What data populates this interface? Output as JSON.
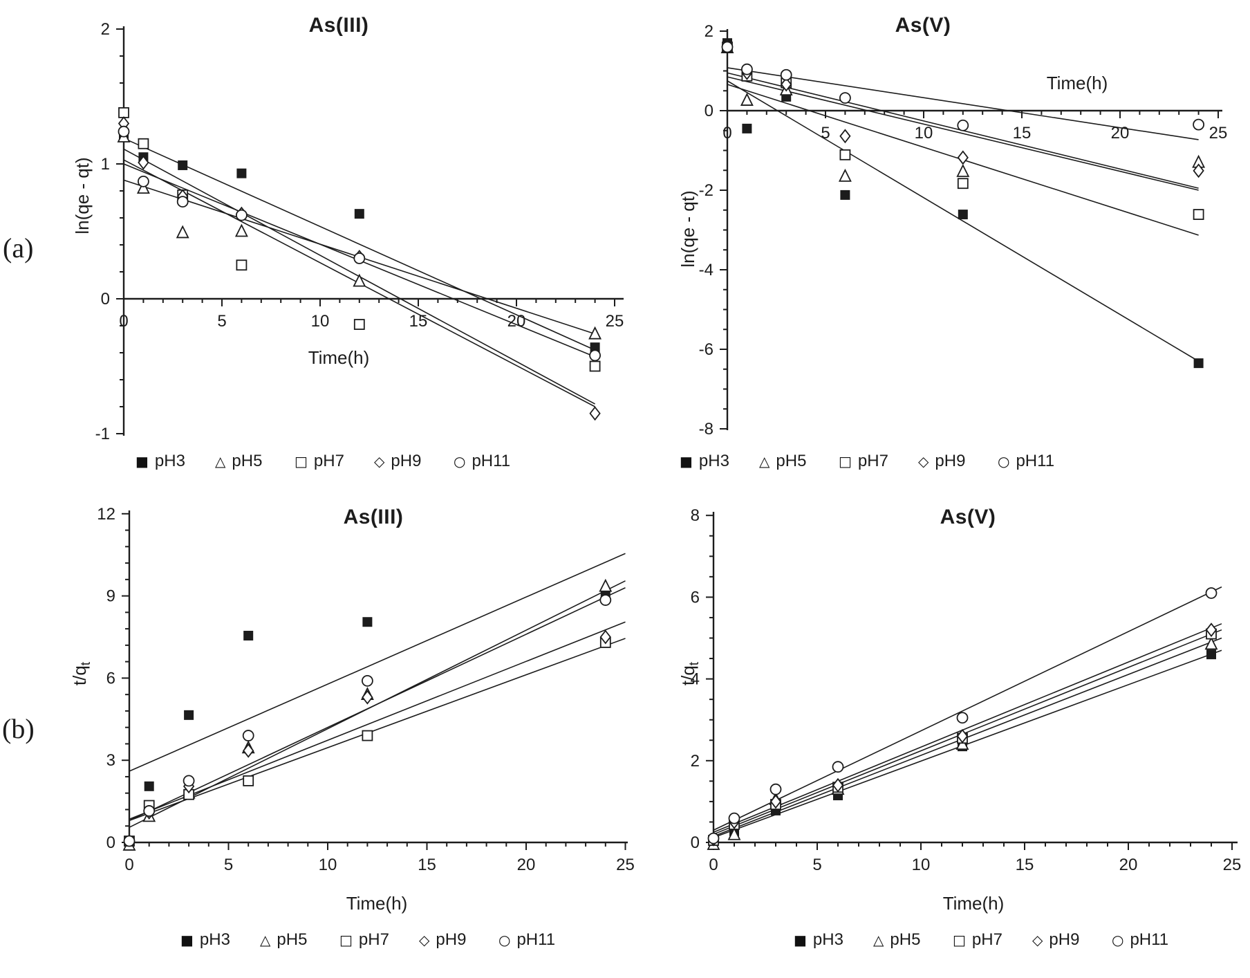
{
  "panels": {
    "a": "(a)",
    "b": "(b)"
  },
  "legend": {
    "marker_glyphs": {
      "square-filled": "■",
      "triangle-open": "△",
      "square-open": "□",
      "diamond-open": "◇",
      "circle-open": "○"
    },
    "items": [
      {
        "marker": "square-filled",
        "label": "pH3"
      },
      {
        "marker": "triangle-open",
        "label": "pH5"
      },
      {
        "marker": "square-open",
        "label": "pH7"
      },
      {
        "marker": "diamond-open",
        "label": "pH9"
      },
      {
        "marker": "circle-open",
        "label": "pH11"
      }
    ]
  },
  "chart_data": [
    {
      "type": "scatter",
      "title": "As(III)",
      "x_label": "Time(h)",
      "y_label_main": "ln(qe - qt)",
      "y_label_sub": "",
      "x_axis": {
        "min": 0,
        "max": 25,
        "ticks": [
          0,
          5,
          10,
          15,
          20,
          25
        ],
        "minor_step": 1
      },
      "y_axis": {
        "min": -1,
        "max": 2,
        "ticks": [
          2,
          1,
          0,
          -1
        ],
        "minor_step": 0.2
      },
      "legend_position": "bottom",
      "grid": false,
      "series": [
        {
          "name": "pH3",
          "marker": "square-filled",
          "points": [
            [
              0,
              1.22
            ],
            [
              1,
              1.05
            ],
            [
              3,
              0.99
            ],
            [
              6,
              0.93
            ],
            [
              12,
              0.63
            ],
            [
              24,
              -0.36
            ]
          ],
          "fit_line": [
            [
              0,
              1.19
            ],
            [
              24,
              -0.38
            ]
          ]
        },
        {
          "name": "pH5",
          "marker": "triangle-open",
          "points": [
            [
              0,
              1.2
            ],
            [
              1,
              0.82
            ],
            [
              3,
              0.49
            ],
            [
              6,
              0.5
            ],
            [
              12,
              0.13
            ],
            [
              24,
              -0.26
            ]
          ],
          "fit_line": [
            [
              0,
              0.88
            ],
            [
              24,
              -0.26
            ]
          ]
        },
        {
          "name": "pH7",
          "marker": "square-open",
          "points": [
            [
              0,
              1.38
            ],
            [
              1,
              1.15
            ],
            [
              3,
              0.77
            ],
            [
              6,
              0.25
            ],
            [
              12,
              -0.19
            ],
            [
              24,
              -0.5
            ]
          ],
          "fit_line": [
            [
              0,
              1.11
            ],
            [
              24,
              -0.78
            ]
          ]
        },
        {
          "name": "pH9",
          "marker": "diamond-open",
          "points": [
            [
              0,
              1.3
            ],
            [
              1,
              1.01
            ],
            [
              3,
              0.76
            ],
            [
              6,
              0.63
            ],
            [
              12,
              0.31
            ],
            [
              24,
              -0.85
            ]
          ],
          "fit_line": [
            [
              0,
              1.03
            ],
            [
              24,
              -0.8
            ]
          ]
        },
        {
          "name": "pH11",
          "marker": "circle-open",
          "points": [
            [
              0,
              1.24
            ],
            [
              1,
              0.87
            ],
            [
              3,
              0.72
            ],
            [
              6,
              0.62
            ],
            [
              12,
              0.3
            ],
            [
              24,
              -0.42
            ]
          ],
          "fit_line": [
            [
              0,
              1.0
            ],
            [
              24,
              -0.43
            ]
          ]
        }
      ]
    },
    {
      "type": "scatter",
      "title": "As(V)",
      "x_label": "Time(h)",
      "y_label_main": "ln(qe - qt)",
      "y_label_sub": "",
      "x_axis": {
        "min": 0,
        "max": 25,
        "ticks": [
          0,
          5,
          10,
          15,
          20,
          25
        ],
        "minor_step": 1
      },
      "y_axis": {
        "min": -8,
        "max": 2,
        "ticks": [
          2,
          0,
          -2,
          -4,
          -6,
          -8
        ],
        "minor_step": 0.5
      },
      "legend_position": "bottom",
      "grid": false,
      "series": [
        {
          "name": "pH3",
          "marker": "square-filled",
          "points": [
            [
              0,
              1.7
            ],
            [
              1,
              -0.45
            ],
            [
              3,
              0.35
            ],
            [
              6,
              -2.12
            ],
            [
              12,
              -2.61
            ],
            [
              24,
              -6.35
            ]
          ],
          "fit_line": [
            [
              0,
              0.75
            ],
            [
              24,
              -6.3
            ]
          ]
        },
        {
          "name": "pH5",
          "marker": "triangle-open",
          "points": [
            [
              0,
              1.58
            ],
            [
              1,
              0.26
            ],
            [
              3,
              0.52
            ],
            [
              6,
              -1.65
            ],
            [
              12,
              -1.53
            ],
            [
              24,
              -1.3
            ]
          ],
          "fit_line": [
            [
              0,
              0.85
            ],
            [
              24,
              -2.0
            ]
          ]
        },
        {
          "name": "pH7",
          "marker": "square-open",
          "points": [
            [
              0,
              1.6
            ],
            [
              1,
              0.87
            ],
            [
              3,
              0.7
            ],
            [
              6,
              -1.11
            ],
            [
              12,
              -1.83
            ],
            [
              24,
              -2.61
            ]
          ],
          "fit_line": [
            [
              0,
              0.66
            ],
            [
              24,
              -3.13
            ]
          ]
        },
        {
          "name": "pH9",
          "marker": "diamond-open",
          "points": [
            [
              0,
              1.62
            ],
            [
              1,
              0.95
            ],
            [
              3,
              0.66
            ],
            [
              6,
              -0.64
            ],
            [
              12,
              -1.18
            ],
            [
              24,
              -1.51
            ]
          ],
          "fit_line": [
            [
              0,
              0.95
            ],
            [
              24,
              -1.95
            ]
          ]
        },
        {
          "name": "pH11",
          "marker": "circle-open",
          "points": [
            [
              0,
              1.6
            ],
            [
              1,
              1.04
            ],
            [
              3,
              0.9
            ],
            [
              6,
              0.32
            ],
            [
              12,
              -0.37
            ],
            [
              24,
              -0.35
            ]
          ],
          "fit_line": [
            [
              0,
              1.08
            ],
            [
              24,
              -0.73
            ]
          ]
        }
      ]
    },
    {
      "type": "scatter",
      "title": "As(III)",
      "x_label": "Time(h)",
      "y_label_main": "t/q",
      "y_label_sub": "t",
      "x_axis": {
        "min": 0,
        "max": 25,
        "ticks": [
          0,
          5,
          10,
          15,
          20,
          25
        ],
        "minor_step": 1
      },
      "y_axis": {
        "min": 0,
        "max": 12,
        "ticks": [
          0,
          3,
          6,
          9,
          12
        ],
        "minor_step": 0.6
      },
      "legend_position": "bottom",
      "grid": false,
      "series": [
        {
          "name": "pH3",
          "marker": "square-filled",
          "points": [
            [
              0,
              0.05
            ],
            [
              1,
              2.05
            ],
            [
              3,
              4.65
            ],
            [
              6,
              7.55
            ],
            [
              12,
              8.05
            ],
            [
              24,
              9.0
            ]
          ],
          "fit_line": [
            [
              0,
              2.6
            ],
            [
              25,
              10.55
            ]
          ]
        },
        {
          "name": "pH5",
          "marker": "triangle-open",
          "points": [
            [
              0,
              -0.1
            ],
            [
              1,
              0.95
            ],
            [
              3,
              1.8
            ],
            [
              6,
              3.45
            ],
            [
              12,
              5.4
            ],
            [
              24,
              9.35
            ]
          ],
          "fit_line": [
            [
              0,
              0.55
            ],
            [
              25,
              9.55
            ]
          ]
        },
        {
          "name": "pH7",
          "marker": "square-open",
          "points": [
            [
              0,
              0.05
            ],
            [
              1,
              1.35
            ],
            [
              3,
              1.75
            ],
            [
              6,
              2.25
            ],
            [
              12,
              3.9
            ],
            [
              24,
              7.3
            ]
          ],
          "fit_line": [
            [
              0,
              0.8
            ],
            [
              25,
              7.45
            ]
          ]
        },
        {
          "name": "pH9",
          "marker": "diamond-open",
          "points": [
            [
              1,
              1.1
            ],
            [
              3,
              2.05
            ],
            [
              6,
              3.35
            ],
            [
              12,
              5.3
            ],
            [
              24,
              7.5
            ]
          ],
          "fit_line": [
            [
              0,
              0.85
            ],
            [
              25,
              8.05
            ]
          ]
        },
        {
          "name": "pH11",
          "marker": "circle-open",
          "points": [
            [
              0,
              0.05
            ],
            [
              1,
              1.15
            ],
            [
              3,
              2.25
            ],
            [
              6,
              3.9
            ],
            [
              12,
              5.9
            ],
            [
              24,
              8.85
            ]
          ],
          "fit_line": [
            [
              0,
              0.8
            ],
            [
              25,
              9.3
            ]
          ]
        }
      ]
    },
    {
      "type": "scatter",
      "title": "As(V)",
      "x_label": "Time(h)",
      "y_label_main": "t/q",
      "y_label_sub": "t",
      "x_axis": {
        "min": 0,
        "max": 25,
        "ticks": [
          0,
          5,
          10,
          15,
          20,
          25
        ],
        "minor_step": 1
      },
      "y_axis": {
        "min": 0,
        "max": 8,
        "ticks": [
          0,
          2,
          4,
          6,
          8
        ],
        "minor_step": 0.5
      },
      "legend_position": "bottom",
      "grid": false,
      "series": [
        {
          "name": "pH3",
          "marker": "square-filled",
          "points": [
            [
              0,
              0.05
            ],
            [
              1,
              0.27
            ],
            [
              3,
              0.78
            ],
            [
              6,
              1.15
            ],
            [
              12,
              2.35
            ],
            [
              24,
              4.6
            ]
          ],
          "fit_line": [
            [
              0,
              0.12
            ],
            [
              24.5,
              4.7
            ]
          ]
        },
        {
          "name": "pH5",
          "marker": "triangle-open",
          "points": [
            [
              0,
              -0.05
            ],
            [
              1,
              0.19
            ],
            [
              3,
              1.05
            ],
            [
              6,
              1.3
            ],
            [
              12,
              2.4
            ],
            [
              24,
              4.85
            ]
          ],
          "fit_line": [
            [
              0,
              0.15
            ],
            [
              24.5,
              5.0
            ]
          ]
        },
        {
          "name": "pH7",
          "marker": "square-open",
          "points": [
            [
              0,
              0.05
            ],
            [
              1,
              0.44
            ],
            [
              3,
              0.93
            ],
            [
              6,
              1.35
            ],
            [
              12,
              2.55
            ],
            [
              24,
              5.1
            ]
          ],
          "fit_line": [
            [
              0,
              0.2
            ],
            [
              24.5,
              5.2
            ]
          ]
        },
        {
          "name": "pH9",
          "marker": "diamond-open",
          "points": [
            [
              0,
              0.08
            ],
            [
              1,
              0.5
            ],
            [
              3,
              1.0
            ],
            [
              6,
              1.4
            ],
            [
              12,
              2.6
            ],
            [
              24,
              5.2
            ]
          ],
          "fit_line": [
            [
              0,
              0.25
            ],
            [
              24.5,
              5.35
            ]
          ]
        },
        {
          "name": "pH11",
          "marker": "circle-open",
          "points": [
            [
              0,
              0.1
            ],
            [
              1,
              0.59
            ],
            [
              3,
              1.3
            ],
            [
              6,
              1.85
            ],
            [
              12,
              3.05
            ],
            [
              24,
              6.1
            ]
          ],
          "fit_line": [
            [
              0,
              0.3
            ],
            [
              24.5,
              6.25
            ]
          ]
        }
      ]
    }
  ]
}
